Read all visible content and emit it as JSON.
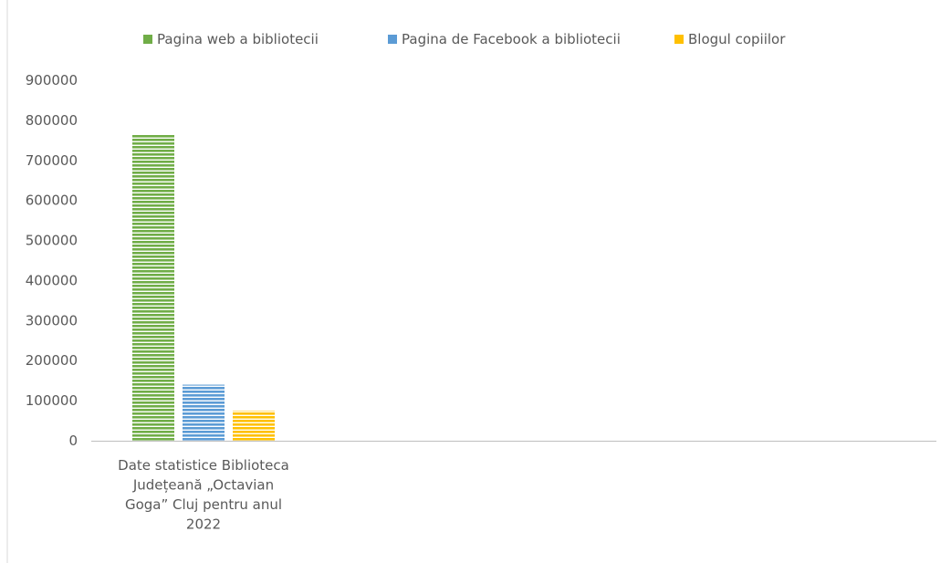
{
  "chart_data": {
    "type": "bar",
    "categories": [
      "Date statistice Biblioteca Județeană „Octavian Goga” Cluj pentru anul 2022"
    ],
    "category_label_lines": [
      "Date statistice Biblioteca",
      "Județeană „Octavian",
      "Goga” Cluj pentru anul",
      "2022"
    ],
    "series": [
      {
        "name": "Pagina web a bibliotecii",
        "values": [
          765000
        ],
        "color": "#70ad47"
      },
      {
        "name": "Pagina de Facebook a bibliotecii",
        "values": [
          140000
        ],
        "color": "#5b9bd5"
      },
      {
        "name": "Blogul copiilor",
        "values": [
          75000
        ],
        "color": "#ffc000"
      }
    ],
    "ylim": [
      0,
      900000
    ],
    "yticks": [
      0,
      100000,
      200000,
      300000,
      400000,
      500000,
      600000,
      700000,
      800000,
      900000
    ],
    "ytick_labels": [
      "0",
      "100000",
      "200000",
      "300000",
      "400000",
      "500000",
      "600000",
      "700000",
      "800000",
      "900000"
    ],
    "title": "",
    "xlabel": "",
    "ylabel": "",
    "legend_position": "top",
    "grid": false,
    "bar_fill": "horizontal-stripes"
  }
}
